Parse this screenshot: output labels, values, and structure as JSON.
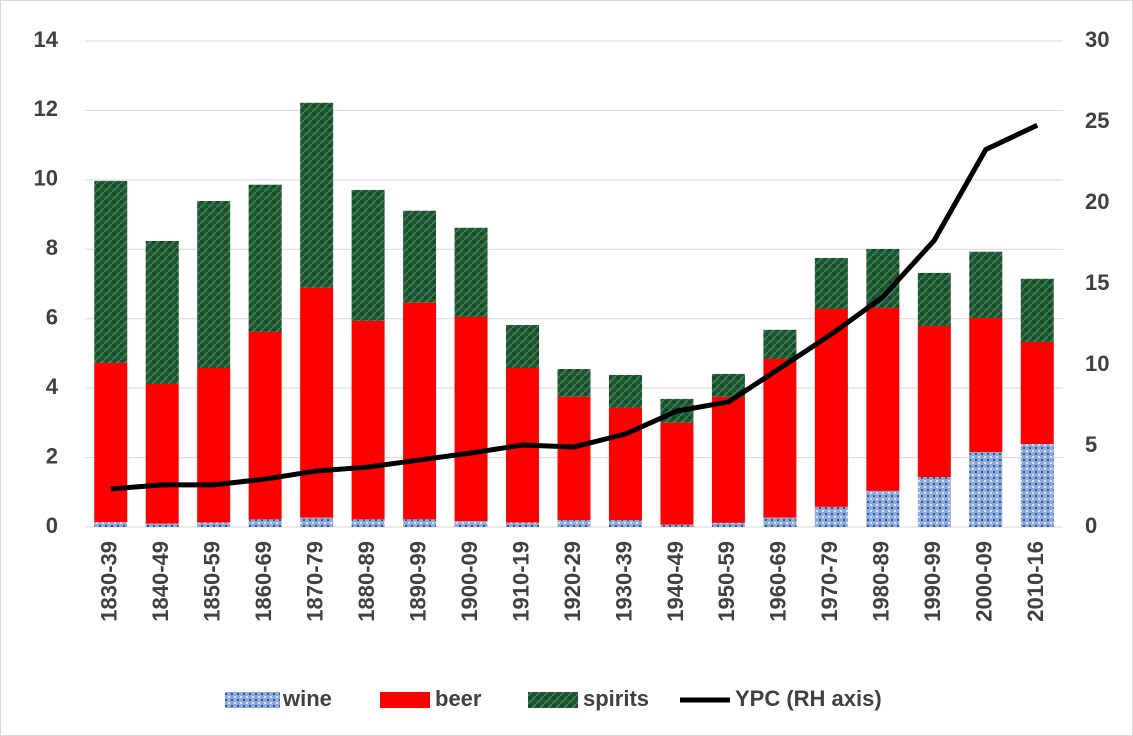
{
  "chart_data": {
    "type": "stacked_bar_line",
    "categories": [
      "1830-39",
      "1840-49",
      "1850-59",
      "1860-69",
      "1870-79",
      "1880-89",
      "1890-99",
      "1900-09",
      "1910-19",
      "1920-29",
      "1930-39",
      "1940-49",
      "1950-59",
      "1960-69",
      "1970-79",
      "1980-89",
      "1990-99",
      "2000-09",
      "2010-16"
    ],
    "series": [
      {
        "name": "wine",
        "color": "#8eaadb",
        "values": [
          0.14,
          0.1,
          0.13,
          0.22,
          0.27,
          0.22,
          0.22,
          0.17,
          0.13,
          0.2,
          0.2,
          0.07,
          0.12,
          0.27,
          0.58,
          1.04,
          1.44,
          2.16,
          2.39
        ]
      },
      {
        "name": "beer",
        "color": "#ff0000",
        "values": [
          4.59,
          4.02,
          4.45,
          5.4,
          6.62,
          5.72,
          6.24,
          5.88,
          4.45,
          3.55,
          3.23,
          2.93,
          3.63,
          4.57,
          5.7,
          5.27,
          4.35,
          3.86,
          2.94
        ]
      },
      {
        "name": "spirits",
        "color": "#1e5631",
        "values": [
          5.24,
          4.12,
          4.81,
          4.24,
          5.33,
          3.77,
          2.65,
          2.57,
          1.24,
          0.8,
          0.95,
          0.69,
          0.66,
          0.84,
          1.47,
          1.7,
          1.53,
          1.91,
          1.82
        ]
      },
      {
        "name": "YPC (RH axis)",
        "color": "#000000",
        "axis": "y2",
        "values": [
          2.35,
          2.6,
          2.6,
          2.96,
          3.46,
          3.7,
          4.14,
          4.57,
          5.06,
          4.94,
          5.74,
          7.16,
          7.72,
          9.8,
          11.9,
          14.2,
          17.7,
          23.3,
          24.8
        ]
      }
    ],
    "ylim": [
      0,
      14
    ],
    "yticks": [
      0,
      2,
      4,
      6,
      8,
      10,
      12,
      14
    ],
    "y2lim": [
      0,
      30
    ],
    "y2ticks": [
      0,
      5,
      10,
      15,
      20,
      25,
      30
    ],
    "grid": true,
    "legend": "bottom"
  }
}
